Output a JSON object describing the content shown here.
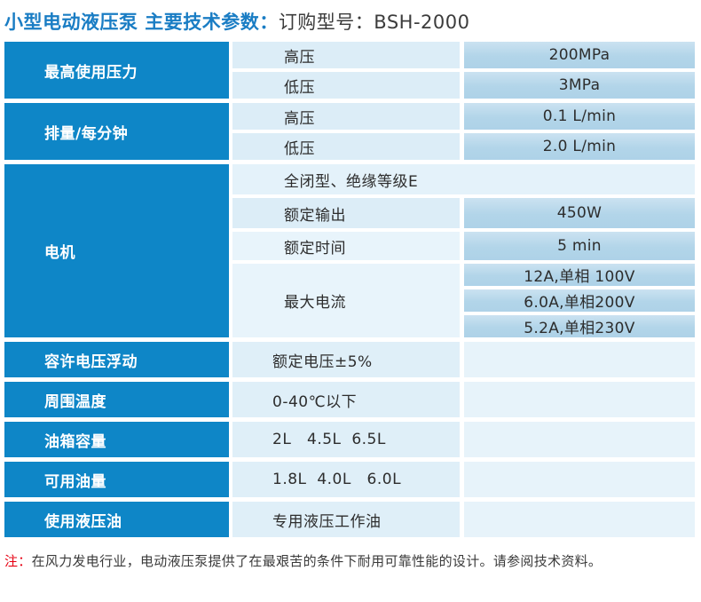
{
  "header": {
    "title_blue": "小型电动液压泵 主要技术参数：",
    "title_dark": "订购型号：BSH-2000"
  },
  "colors": {
    "group_label_bg": "#0e86c7",
    "param_cell_bg": "#dcedf7",
    "value_cell_bg": "#b4d6ea",
    "empty_cell_bg": "#e7f3fa",
    "title_blue": "#1a7dc4",
    "note_prefix_red": "#e60012"
  },
  "table": {
    "groups": [
      {
        "label": "最高使用压力",
        "rows": [
          {
            "param": "高压",
            "value": "200MPa"
          },
          {
            "param": "低压",
            "value": "3MPa"
          }
        ]
      },
      {
        "label": "排量/每分钟",
        "rows": [
          {
            "param": "高压",
            "value": "0.1 L/min"
          },
          {
            "param": "低压",
            "value": "2.0 L/min"
          }
        ]
      },
      {
        "label": "电机",
        "rows": [
          {
            "param": "全闭型、绝缘等级E",
            "value": ""
          },
          {
            "param": "额定输出",
            "value": "450W"
          },
          {
            "param": "额定时间",
            "value": "5 min"
          },
          {
            "param": "最大电流",
            "values": [
              "12A,单相 100V",
              "6.0A,单相200V",
              "5.2A,单相230V"
            ]
          }
        ]
      },
      {
        "label": "容许电压浮动",
        "rows": [
          {
            "param": "额定电压±5%",
            "value": ""
          }
        ]
      },
      {
        "label": "周围温度",
        "rows": [
          {
            "param": "0-40℃以下",
            "value": ""
          }
        ]
      },
      {
        "label": "油箱容量",
        "rows": [
          {
            "param": "2L   4.5L  6.5L",
            "value": ""
          }
        ]
      },
      {
        "label": "可用油量",
        "rows": [
          {
            "param": "1.8L  4.0L   6.0L",
            "value": ""
          }
        ]
      },
      {
        "label": "使用液压油",
        "rows": [
          {
            "param": "专用液压工作油",
            "value": ""
          }
        ]
      }
    ]
  },
  "note": {
    "prefix": "注：",
    "text": "在风力发电行业，电动液压泵提供了在最艰苦的条件下耐用可靠性能的设计。请参阅技术资料。"
  }
}
